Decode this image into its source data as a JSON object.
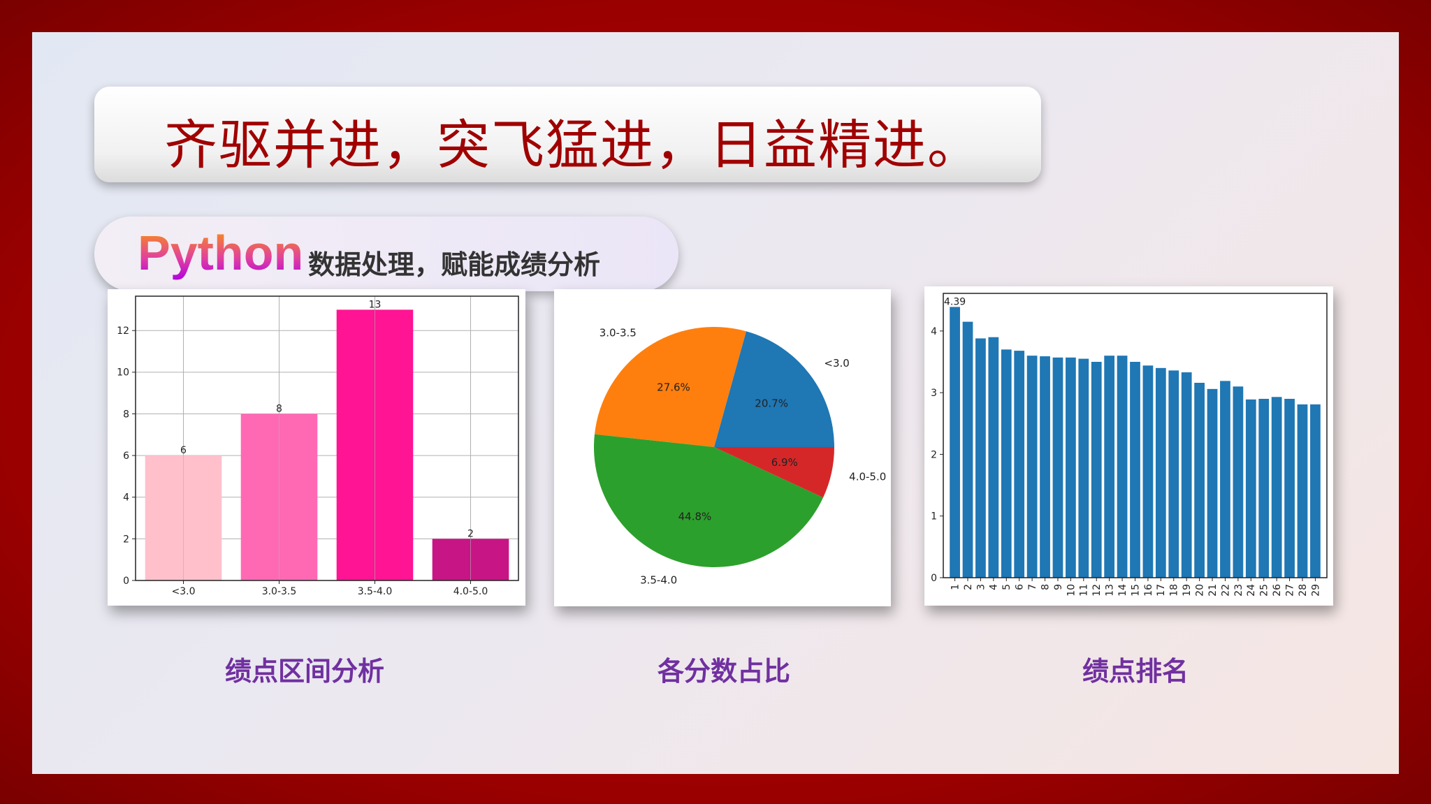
{
  "title": "齐驱并进，突飞猛进，日益精进。",
  "subtitle": {
    "brand": "Python",
    "text": "数据处理，赋能成绩分析"
  },
  "captions": [
    "绩点区间分析",
    "各分数占比",
    "绩点排名"
  ],
  "chart_data": [
    {
      "type": "bar",
      "categories": [
        "<3.0",
        "3.0-3.5",
        "3.5-4.0",
        "4.0-5.0"
      ],
      "values": [
        6,
        8,
        13,
        2
      ],
      "data_labels": [
        "6",
        "8",
        "13",
        "2"
      ],
      "colors": [
        "#ffc0cb",
        "#ff69b4",
        "#ff1493",
        "#c71585"
      ],
      "ylim": [
        0,
        13.65
      ],
      "yticks": [
        0,
        2,
        4,
        6,
        8,
        10,
        12
      ],
      "grid": true
    },
    {
      "type": "pie",
      "labels": [
        "<3.0",
        "3.0-3.5",
        "3.5-4.0",
        "4.0-5.0"
      ],
      "values": [
        20.7,
        27.6,
        44.8,
        6.9
      ],
      "pct_labels": [
        "20.7%",
        "27.6%",
        "44.8%",
        "6.9%"
      ],
      "colors": [
        "#1f77b4",
        "#ff7f0e",
        "#2ca02c",
        "#d62728"
      ]
    },
    {
      "type": "bar",
      "categories": [
        "1",
        "2",
        "3",
        "4",
        "5",
        "6",
        "7",
        "8",
        "9",
        "10",
        "11",
        "12",
        "13",
        "14",
        "15",
        "16",
        "17",
        "18",
        "19",
        "20",
        "21",
        "22",
        "23",
        "24",
        "25",
        "26",
        "27",
        "28",
        "29"
      ],
      "values": [
        4.39,
        4.15,
        3.88,
        3.9,
        3.7,
        3.68,
        3.6,
        3.59,
        3.57,
        3.57,
        3.55,
        3.5,
        3.6,
        3.6,
        3.5,
        3.44,
        3.4,
        3.36,
        3.33,
        3.16,
        3.06,
        3.19,
        3.1,
        2.89,
        2.9,
        2.93,
        2.9,
        2.81,
        2.81
      ],
      "data_label": "4.39",
      "color": "#1f77b4",
      "ylim": [
        0,
        4.61
      ],
      "yticks": [
        0,
        1,
        2,
        3,
        4
      ],
      "grid": false
    }
  ]
}
